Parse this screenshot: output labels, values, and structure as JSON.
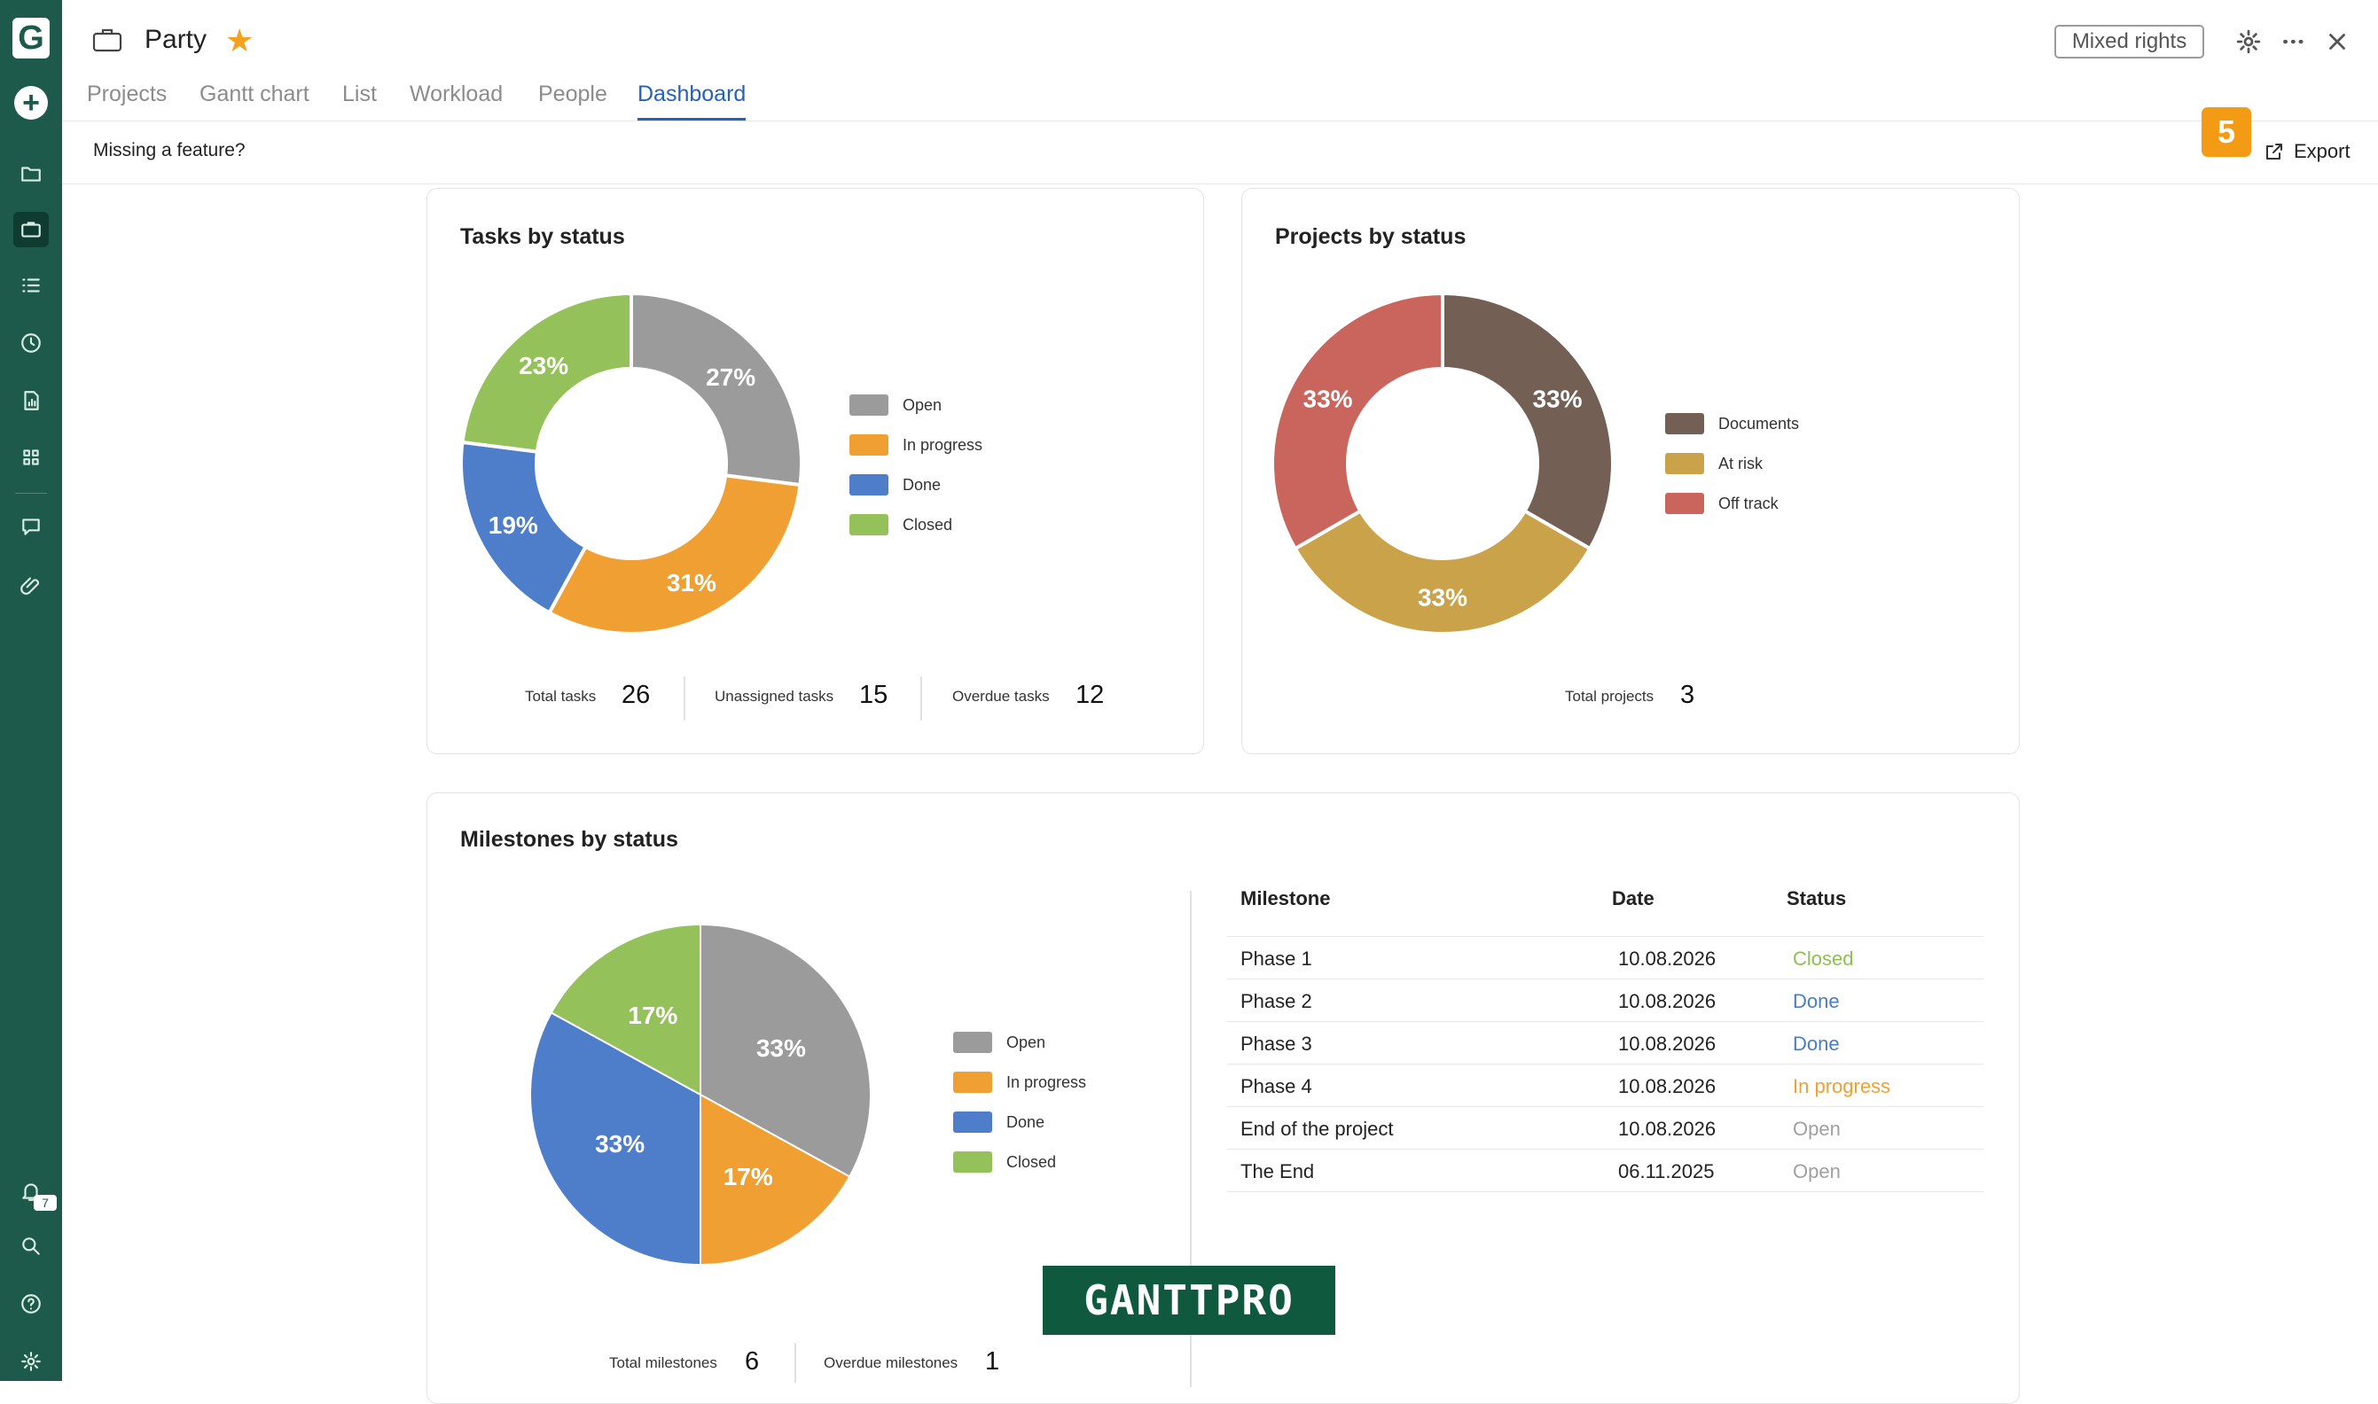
{
  "app": {
    "project_title": "Party",
    "mixed_rights_label": "Mixed rights",
    "notification_count": "7",
    "missing_feature": "Missing a feature?",
    "step_badge": "5",
    "export_label": "Export",
    "watermark": "GANTTPRO"
  },
  "tabs": [
    {
      "label": "Projects",
      "active": false
    },
    {
      "label": "Gantt chart",
      "active": false
    },
    {
      "label": "List",
      "active": false
    },
    {
      "label": "Workload",
      "active": false
    },
    {
      "label": "People",
      "active": false
    },
    {
      "label": "Dashboard",
      "active": true
    }
  ],
  "sidebar": {
    "items": [
      "folder-icon",
      "briefcase-icon",
      "list-icon",
      "clock-icon",
      "report-icon",
      "grid-icon",
      "chat-icon",
      "paperclip-icon"
    ],
    "bottom": [
      "bell-icon",
      "search-icon",
      "help-icon",
      "settings-icon"
    ]
  },
  "tasks_card": {
    "title": "Tasks by status",
    "stats": [
      {
        "label": "Total tasks",
        "value": "26"
      },
      {
        "label": "Unassigned tasks",
        "value": "15"
      },
      {
        "label": "Overdue tasks",
        "value": "12"
      }
    ]
  },
  "projects_card": {
    "title": "Projects by status",
    "stats": [
      {
        "label": "Total projects",
        "value": "3"
      }
    ]
  },
  "milestones_card": {
    "title": "Milestones by status",
    "stats": [
      {
        "label": "Total milestones",
        "value": "6"
      },
      {
        "label": "Overdue milestones",
        "value": "1"
      }
    ],
    "table": {
      "headers": [
        "Milestone",
        "Date",
        "Status"
      ],
      "rows": [
        {
          "name": "Phase 1",
          "date": "10.08.2026",
          "status": "Closed",
          "color": "#8cc152"
        },
        {
          "name": "Phase 2",
          "date": "10.08.2026",
          "status": "Done",
          "color": "#4a7bc8"
        },
        {
          "name": "Phase 3",
          "date": "10.08.2026",
          "status": "Done",
          "color": "#4a7bc8"
        },
        {
          "name": "Phase 4",
          "date": "10.08.2026",
          "status": "In progress",
          "color": "#f0a033"
        },
        {
          "name": "End of the project",
          "date": "10.08.2026",
          "status": "Open",
          "color": "#a0a0a0"
        },
        {
          "name": "The End",
          "date": "06.11.2025",
          "status": "Open",
          "color": "#a0a0a0"
        }
      ]
    }
  },
  "chart_data": [
    {
      "type": "pie",
      "variant": "donut",
      "title": "Tasks by status",
      "categories": [
        "Open",
        "In progress",
        "Done",
        "Closed"
      ],
      "values": [
        27,
        31,
        19,
        23
      ],
      "labels": [
        "27%",
        "31%",
        "19%",
        "23%"
      ],
      "colors": [
        "#9b9b9b",
        "#f0a033",
        "#4e7ec9",
        "#95c15a"
      ],
      "legend": "right"
    },
    {
      "type": "pie",
      "variant": "donut",
      "title": "Projects by status",
      "categories": [
        "Documents",
        "At risk",
        "Off track"
      ],
      "values": [
        33,
        33,
        33
      ],
      "labels": [
        "33%",
        "33%",
        "33%"
      ],
      "colors": [
        "#745f55",
        "#c9a24a",
        "#c9655d"
      ],
      "legend": "right"
    },
    {
      "type": "pie",
      "title": "Milestones by status",
      "categories": [
        "Open",
        "In progress",
        "Done",
        "Closed"
      ],
      "values": [
        33,
        17,
        33,
        17
      ],
      "labels": [
        "33%",
        "17%",
        "33%",
        "17%"
      ],
      "colors": [
        "#9b9b9b",
        "#f0a033",
        "#4e7ec9",
        "#95c15a"
      ],
      "legend": "right"
    }
  ]
}
